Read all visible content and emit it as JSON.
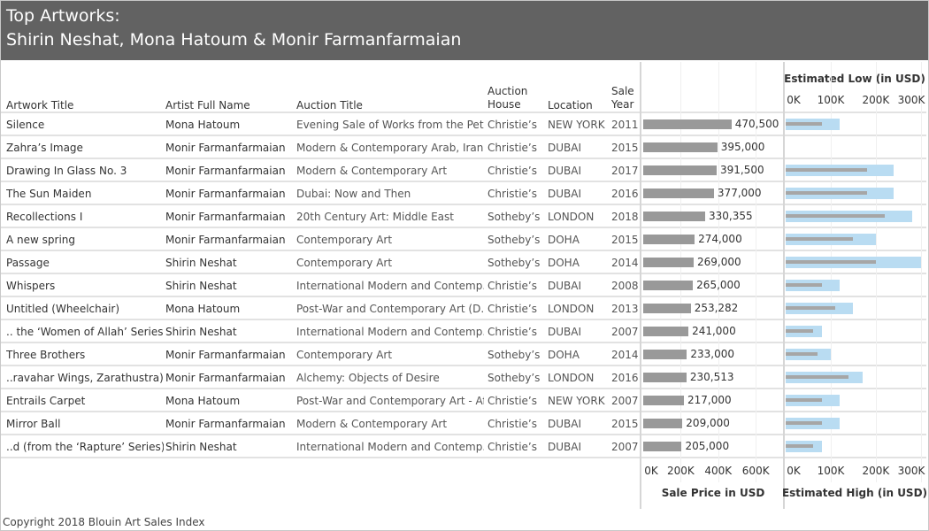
{
  "title": {
    "line1": "Top Artworks:",
    "line2": "Shirin Neshat, Mona Hatoum & Monir Farmanfarmaian"
  },
  "columns": {
    "artwork_title": "Artwork Title",
    "artist": "Artist Full Name",
    "auction_title": "Auction Title",
    "auction_house": [
      "Auction",
      "House"
    ],
    "location": "Location",
    "sale_year": [
      "Sale",
      "Year"
    ]
  },
  "rows": [
    {
      "artwork": "Silence",
      "artist": "Mona Hatoum",
      "auction": "Evening Sale of Works from the Pet..",
      "house": "Christie’s",
      "location": "NEW YORK",
      "year": "2011",
      "price_label": "470,500"
    },
    {
      "artwork": "Zahra’s Image",
      "artist": "Monir Farmanfarmaian",
      "auction": "Modern & Contemporary Arab, Irani..",
      "house": "Christie’s",
      "location": "DUBAI",
      "year": "2015",
      "price_label": "395,000"
    },
    {
      "artwork": "Drawing In Glass No. 3",
      "artist": "Monir Farmanfarmaian",
      "auction": "Modern & Contemporary Art",
      "house": "Christie’s",
      "location": "DUBAI",
      "year": "2017",
      "price_label": "391,500"
    },
    {
      "artwork": "The Sun Maiden",
      "artist": "Monir Farmanfarmaian",
      "auction": "Dubai: Now and Then",
      "house": "Christie’s",
      "location": "DUBAI",
      "year": "2016",
      "price_label": "377,000"
    },
    {
      "artwork": "Recollections I",
      "artist": "Monir Farmanfarmaian",
      "auction": "20th Century Art: Middle East",
      "house": "Sotheby’s",
      "location": "LONDON",
      "year": "2018",
      "price_label": "330,355"
    },
    {
      "artwork": "A new spring",
      "artist": "Monir Farmanfarmaian",
      "auction": "Contemporary Art",
      "house": "Sotheby’s",
      "location": "DOHA",
      "year": "2015",
      "price_label": "274,000"
    },
    {
      "artwork": "Passage",
      "artist": "Shirin Neshat",
      "auction": "Contemporary Art",
      "house": "Sotheby’s",
      "location": "DOHA",
      "year": "2014",
      "price_label": "269,000"
    },
    {
      "artwork": "Whispers",
      "artist": "Shirin Neshat",
      "auction": "International Modern and Contemp..",
      "house": "Christie’s",
      "location": "DUBAI",
      "year": "2008",
      "price_label": "265,000"
    },
    {
      "artwork": "Untitled (Wheelchair)",
      "artist": "Mona Hatoum",
      "auction": "Post-War and Contemporary Art (D..",
      "house": "Christie’s",
      "location": "LONDON",
      "year": "2013",
      "price_label": "253,282"
    },
    {
      "artwork": ".. the ‘Women of Allah’ Series)",
      "artist": "Shirin Neshat",
      "auction": "International Modern and Contemp..",
      "house": "Christie’s",
      "location": "DUBAI",
      "year": "2007",
      "price_label": "241,000"
    },
    {
      "artwork": "Three Brothers",
      "artist": "Monir Farmanfarmaian",
      "auction": "Contemporary Art",
      "house": "Sotheby’s",
      "location": "DOHA",
      "year": "2014",
      "price_label": "233,000"
    },
    {
      "artwork": "..ravahar Wings, Zarathustra)",
      "artist": "Monir Farmanfarmaian",
      "auction": "Alchemy: Objects of Desire",
      "house": "Sotheby’s",
      "location": "LONDON",
      "year": "2016",
      "price_label": "230,513"
    },
    {
      "artwork": "Entrails Carpet",
      "artist": "Mona Hatoum",
      "auction": "Post-War and Contemporary Art - Af..",
      "house": "Christie’s",
      "location": "NEW YORK",
      "year": "2007",
      "price_label": "217,000"
    },
    {
      "artwork": "Mirror Ball",
      "artist": "Monir Farmanfarmaian",
      "auction": "Modern & Contemporary Art",
      "house": "Christie’s",
      "location": "DUBAI",
      "year": "2015",
      "price_label": "209,000"
    },
    {
      "artwork": "..d (from the ‘Rapture’ Series)",
      "artist": "Shirin Neshat",
      "auction": "International Modern and Contemp..",
      "house": "Christie’s",
      "location": "DUBAI",
      "year": "2007",
      "price_label": "205,000"
    }
  ],
  "chart_data": [
    {
      "type": "bar",
      "orientation": "horizontal",
      "xlabel": "Sale Price in USD",
      "xlim": [
        0,
        750000
      ],
      "ticks": [
        "0K",
        "200K",
        "400K",
        "600K"
      ],
      "tick_values": [
        0,
        200000,
        400000,
        600000
      ],
      "values": [
        470500,
        395000,
        391500,
        377000,
        330355,
        274000,
        269000,
        265000,
        253282,
        241000,
        233000,
        230513,
        217000,
        209000,
        205000
      ],
      "bar_color": "#999999",
      "grid": true
    },
    {
      "type": "bar",
      "orientation": "horizontal",
      "title": "Estimated Low (in USD)",
      "xlabel": "Estimated High (in USD)",
      "xlim": [
        0,
        310000
      ],
      "ticks": [
        "0K",
        "100K",
        "200K",
        "300K"
      ],
      "tick_values": [
        0,
        100000,
        200000,
        300000
      ],
      "series": [
        {
          "name": "Estimated High (in USD)",
          "color": "#b9dcf2",
          "values": [
            120000,
            null,
            240000,
            240000,
            280000,
            200000,
            300000,
            120000,
            150000,
            80000,
            100000,
            170000,
            120000,
            120000,
            80000
          ]
        },
        {
          "name": "Estimated Low (in USD)",
          "color": "#a6a6a6",
          "values": [
            80000,
            null,
            180000,
            180000,
            220000,
            150000,
            200000,
            80000,
            110000,
            60000,
            70000,
            140000,
            80000,
            80000,
            60000
          ]
        }
      ],
      "grid": true
    }
  ],
  "footer": {
    "copyright": "Copyright 2018 Blouin Art Sales Index"
  }
}
